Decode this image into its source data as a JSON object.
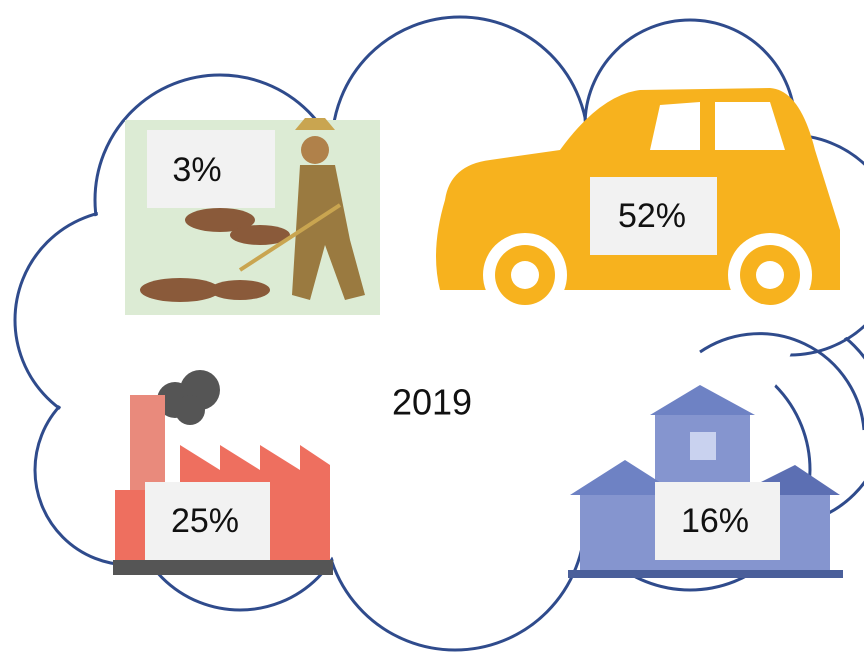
{
  "year": "2019",
  "sectors": [
    {
      "label": "3%"
    },
    {
      "label": "52%"
    },
    {
      "label": "25%"
    },
    {
      "label": "16%"
    }
  ]
}
